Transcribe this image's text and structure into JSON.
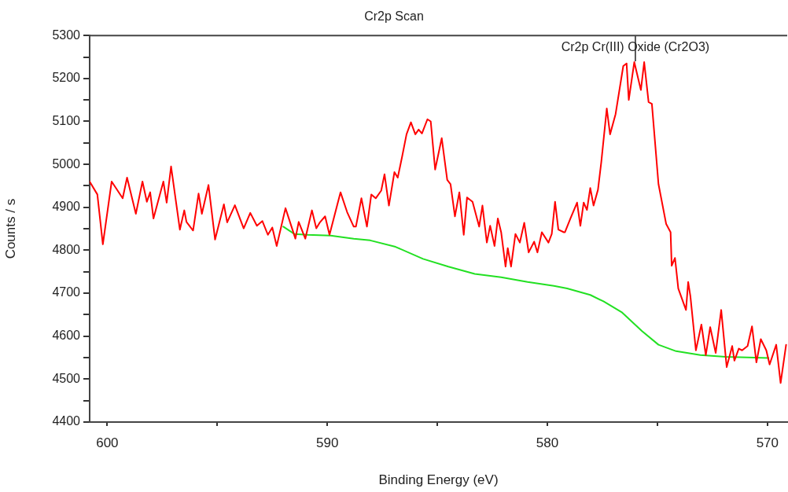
{
  "chart_data": {
    "type": "line",
    "title": "Cr2p Scan",
    "xlabel": "Binding Energy (eV)",
    "ylabel": "Counts / s",
    "xlim": [
      600.8,
      569.1
    ],
    "ylim": [
      4400,
      5300
    ],
    "xticks": [
      600,
      {
        "value": 595,
        "label": null
      },
      590,
      {
        "value": 585,
        "label": null
      },
      580,
      {
        "value": 575,
        "label": null
      },
      570
    ],
    "yticks": [
      4400,
      {
        "value": 4450,
        "label": null
      },
      4500,
      {
        "value": 4550,
        "label": null
      },
      4600,
      {
        "value": 4650,
        "label": null
      },
      4700,
      {
        "value": 4750,
        "label": null
      },
      4800,
      {
        "value": 4850,
        "label": null
      },
      4900,
      {
        "value": 4950,
        "label": null
      },
      5000,
      {
        "value": 5050,
        "label": null
      },
      5100,
      {
        "value": 5150,
        "label": null
      },
      5200,
      {
        "value": 5250,
        "label": null
      },
      5300
    ],
    "grid": false,
    "legend": false,
    "marker": "none",
    "line_style": "solid",
    "annotations": [
      {
        "text": "Cr2p Cr(III) Oxide (Cr2O3)",
        "x": 576.0,
        "y": 5240
      }
    ],
    "series": [
      {
        "color": "#ff0000",
        "x": [
          600.8,
          600.45,
          600.2,
          599.8,
          599.3,
          599.1,
          598.7,
          598.4,
          598.2,
          598.05,
          597.9,
          597.45,
          597.3,
          597.1,
          596.7,
          596.5,
          596.4,
          596.1,
          595.85,
          595.7,
          595.4,
          595.1,
          594.7,
          594.55,
          594.2,
          593.8,
          593.5,
          593.2,
          592.95,
          592.7,
          592.5,
          592.3,
          591.9,
          591.45,
          591.3,
          591.0,
          590.7,
          590.5,
          590.35,
          590.1,
          589.9,
          589.4,
          589.1,
          588.8,
          588.7,
          588.45,
          588.2,
          588.0,
          587.8,
          587.55,
          587.4,
          587.2,
          586.95,
          586.8,
          586.6,
          586.4,
          586.2,
          586.0,
          585.85,
          585.7,
          585.45,
          585.3,
          585.1,
          584.8,
          584.55,
          584.4,
          584.2,
          584.0,
          583.8,
          583.65,
          583.4,
          583.1,
          582.95,
          582.75,
          582.6,
          582.4,
          582.25,
          582.1,
          581.9,
          581.8,
          581.65,
          581.45,
          581.25,
          581.05,
          580.85,
          580.6,
          580.45,
          580.25,
          579.95,
          579.8,
          579.65,
          579.5,
          579.25,
          579.2,
          578.95,
          578.65,
          578.5,
          578.35,
          578.2,
          578.05,
          577.9,
          577.7,
          577.55,
          577.3,
          577.15,
          576.9,
          576.55,
          576.4,
          576.3,
          576.05,
          575.75,
          575.6,
          575.4,
          575.25,
          574.95,
          574.6,
          574.4,
          574.35,
          574.2,
          574.05,
          573.7,
          573.6,
          573.5,
          573.25,
          573.0,
          572.8,
          572.6,
          572.35,
          572.1,
          571.85,
          571.6,
          571.5,
          571.3,
          571.15,
          570.9,
          570.7,
          570.5,
          570.3,
          570.05,
          569.9,
          569.6,
          569.4,
          569.15
        ],
        "values": [
          4960,
          4930,
          4814,
          4960,
          4921,
          4969,
          4885,
          4960,
          4913,
          4935,
          4874,
          4960,
          4911,
          4995,
          4848,
          4893,
          4866,
          4846,
          4932,
          4885,
          4952,
          4825,
          4907,
          4865,
          4905,
          4851,
          4887,
          4857,
          4868,
          4836,
          4853,
          4810,
          4898,
          4827,
          4866,
          4827,
          4893,
          4851,
          4864,
          4879,
          4836,
          4935,
          4889,
          4855,
          4855,
          4921,
          4855,
          4930,
          4921,
          4939,
          4977,
          4904,
          4982,
          4969,
          5018,
          5070,
          5098,
          5070,
          5081,
          5072,
          5105,
          5100,
          4988,
          5061,
          4964,
          4954,
          4879,
          4935,
          4836,
          4923,
          4913,
          4855,
          4904,
          4818,
          4857,
          4810,
          4874,
          4842,
          4762,
          4805,
          4762,
          4838,
          4818,
          4864,
          4795,
          4820,
          4795,
          4842,
          4818,
          4838,
          4913,
          4848,
          4842,
          4842,
          4874,
          4911,
          4857,
          4911,
          4894,
          4945,
          4904,
          4941,
          5005,
          5130,
          5070,
          5117,
          5229,
          5235,
          5150,
          5238,
          5173,
          5238,
          5145,
          5141,
          4954,
          4861,
          4842,
          4764,
          4782,
          4711,
          4661,
          4726,
          4693,
          4567,
          4627,
          4556,
          4621,
          4561,
          4661,
          4528,
          4577,
          4543,
          4571,
          4567,
          4577,
          4623,
          4539,
          4593,
          4567,
          4534,
          4580,
          4491,
          4580
        ]
      },
      {
        "color": "#22e022",
        "x": [
          592.0,
          591.5,
          590.9,
          589.85,
          588.8,
          588.05,
          586.9,
          585.65,
          584.5,
          583.3,
          582.1,
          580.9,
          579.7,
          579.1,
          578.05,
          577.45,
          576.6,
          575.7,
          574.95,
          574.15,
          573.05,
          571.9,
          569.95
        ],
        "values": [
          4855,
          4838,
          4836,
          4834,
          4827,
          4823,
          4808,
          4780,
          4762,
          4745,
          4737,
          4726,
          4717,
          4711,
          4696,
          4681,
          4655,
          4612,
          4580,
          4565,
          4556,
          4552,
          4549
        ]
      }
    ]
  }
}
